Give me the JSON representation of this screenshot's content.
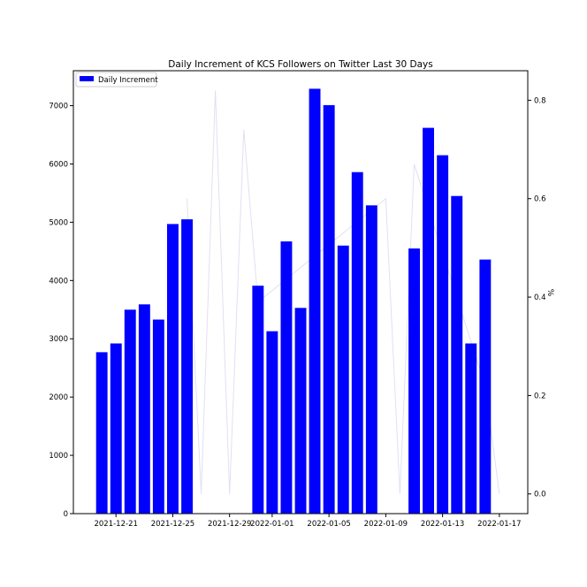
{
  "chart_data": {
    "type": "bar",
    "title": "Daily Increment of KCS Followers on Twitter Last 30 Days",
    "xlabel": "",
    "ylabel": "",
    "y2label": "%",
    "ylim": [
      0,
      7600
    ],
    "y2lim": [
      -0.04,
      0.86
    ],
    "yticks": [
      0,
      1000,
      2000,
      3000,
      4000,
      5000,
      6000,
      7000
    ],
    "y2ticks": [
      "0.0",
      "0.2",
      "0.4",
      "0.6",
      "0.8"
    ],
    "xticks": [
      "2021-12-21",
      "2021-12-25",
      "2021-12-29",
      "2022-01-01",
      "2022-01-05",
      "2022-01-09",
      "2022-01-13",
      "2022-01-17"
    ],
    "legend": {
      "label": "Daily Increment",
      "position": "top-left"
    },
    "bar_color": "#0000ff",
    "line_color": "#e0e0f4",
    "grid": false,
    "series": [
      {
        "name": "Daily Increment",
        "x": [
          "2021-12-20",
          "2021-12-21",
          "2021-12-22",
          "2021-12-23",
          "2021-12-24",
          "2021-12-25",
          "2021-12-26",
          "2021-12-27",
          "2021-12-28",
          "2021-12-29",
          "2021-12-30",
          "2021-12-31",
          "2022-01-01",
          "2022-01-02",
          "2022-01-03",
          "2022-01-04",
          "2022-01-05",
          "2022-01-06",
          "2022-01-07",
          "2022-01-08",
          "2022-01-09",
          "2022-01-10",
          "2022-01-11",
          "2022-01-12",
          "2022-01-13",
          "2022-01-14",
          "2022-01-15",
          "2022-01-16",
          "2022-01-17"
        ],
        "values": [
          2770,
          2920,
          3500,
          3590,
          3330,
          4970,
          5050,
          0,
          0,
          0,
          0,
          3910,
          3130,
          4670,
          3530,
          7290,
          7010,
          4600,
          5860,
          5290,
          0,
          0,
          4550,
          6620,
          6150,
          5450,
          2920,
          4360,
          0
        ]
      },
      {
        "name": "",
        "axis": "right",
        "x": [
          "2021-12-26",
          "2021-12-27",
          "2021-12-28",
          "2021-12-29",
          "2021-12-30",
          "2021-12-31",
          "2022-01-09",
          "2022-01-10",
          "2022-01-11",
          "2022-01-16",
          "2022-01-17"
        ],
        "values": [
          0.6,
          0.0,
          0.82,
          0.0,
          0.74,
          0.39,
          0.6,
          0.0,
          0.67,
          0.22,
          0.0
        ]
      }
    ]
  }
}
